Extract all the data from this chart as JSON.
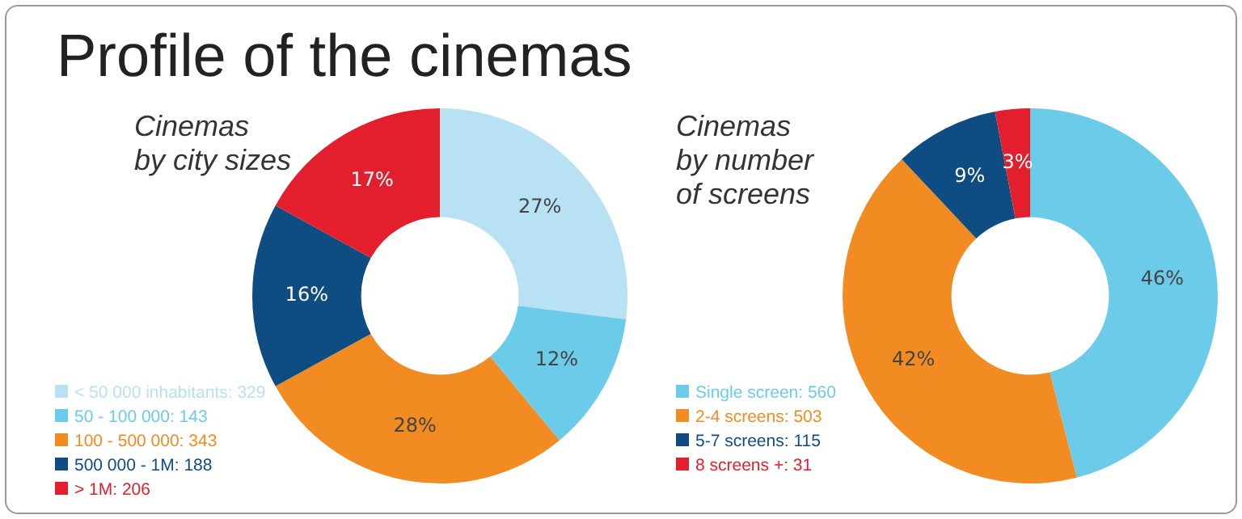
{
  "chart_data": [
    {
      "type": "donut",
      "title": "Profile of the cinemas",
      "subtitle": "Cinemas\nby city sizes",
      "legend": "bottom left",
      "categories": [
        "< 50 000 inhabitants: 329",
        "50 - 100 000: 143",
        "100 - 500 000: 343",
        "500 000 - 1M: 188",
        "> 1M: 206"
      ],
      "values": [
        27,
        12,
        28,
        16,
        17
      ],
      "colors": [
        "#b9e1f4",
        "#6dcbea",
        "#f28c22",
        "#0f4c81",
        "#e31e2d"
      ],
      "value_labels": [
        "27%",
        "12%",
        "28%",
        "16%",
        "17%"
      ]
    },
    {
      "type": "donut",
      "subtitle": "Cinemas\nby number\nof screens",
      "legend": "bottom left",
      "categories": [
        "Single screen: 560",
        "2-4 screens: 503",
        "5-7 screens: 115",
        "8 screens +: 31"
      ],
      "values": [
        46,
        42,
        9,
        3
      ],
      "colors": [
        "#6dcbea",
        "#f28c22",
        "#0f4c81",
        "#e31e2d"
      ],
      "value_labels": [
        "46%",
        "42%",
        "9%",
        "3%"
      ]
    }
  ]
}
